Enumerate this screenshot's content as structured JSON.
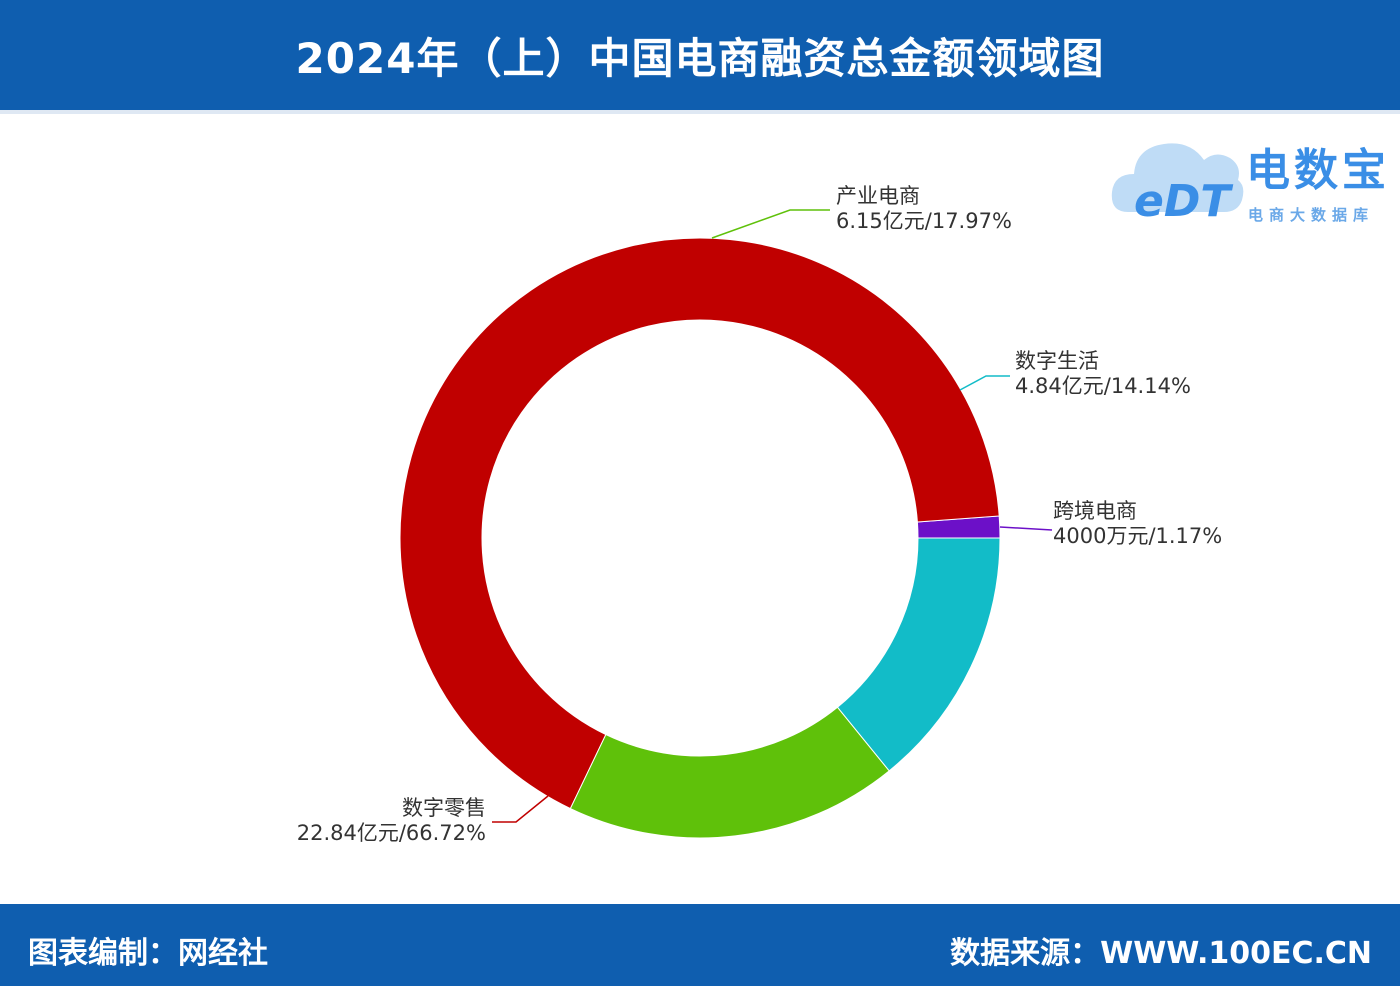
{
  "header": {
    "title": "2024年（上）中国电商融资总金额领域图"
  },
  "footer": {
    "left": "图表编制：网经社",
    "right": "数据来源：WWW.100EC.CN"
  },
  "logo": {
    "brand": "电数宝",
    "mark": "eDT",
    "sub": "电商大数据库"
  },
  "colors": {
    "header_bg": "#0f5eaf",
    "red": "#c00000",
    "green": "#5fc10a",
    "teal": "#12bcc8",
    "purple": "#6c10c8"
  },
  "chart_data": {
    "type": "pie",
    "style": "donut",
    "title": "2024年（上）中国电商融资总金额领域图",
    "slices": [
      {
        "name": "跨境电商",
        "label": "4000万元/1.17%",
        "percent": 1.17,
        "amount": "4000万元",
        "color": "#6c10c8"
      },
      {
        "name": "数字零售",
        "label": "22.84亿元/66.72%",
        "percent": 66.72,
        "amount": "22.84亿元",
        "color": "#c00000"
      },
      {
        "name": "产业电商",
        "label": "6.15亿元/17.97%",
        "percent": 17.97,
        "amount": "6.15亿元",
        "color": "#5fc10a"
      },
      {
        "name": "数字生活",
        "label": "4.84亿元/14.14%",
        "percent": 14.14,
        "amount": "4.84亿元",
        "color": "#12bcc8"
      }
    ]
  }
}
